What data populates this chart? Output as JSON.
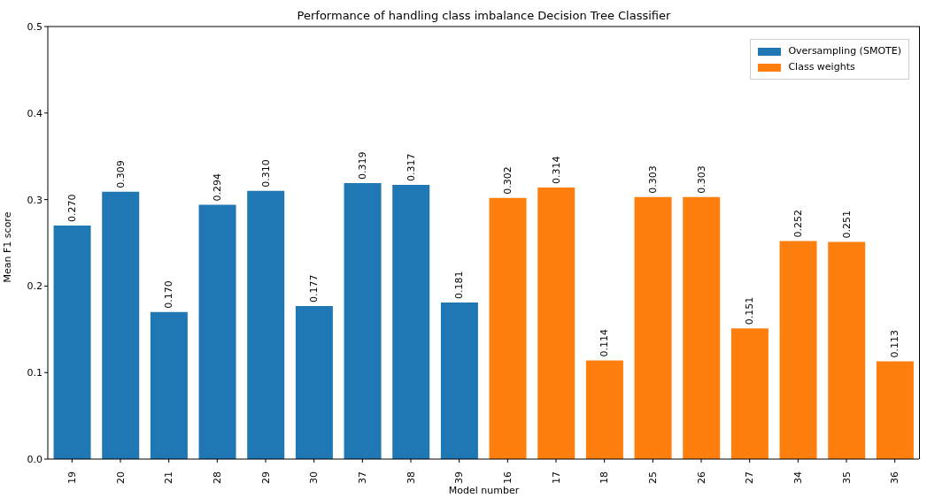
{
  "chart_data": {
    "type": "bar",
    "title": "Performance of handling class imbalance Decision Tree Classifier",
    "xlabel": "Model number",
    "ylabel": "Mean F1 score",
    "categories": [
      "19",
      "20",
      "21",
      "28",
      "29",
      "30",
      "37",
      "38",
      "39",
      "16",
      "17",
      "18",
      "25",
      "26",
      "27",
      "34",
      "35",
      "36"
    ],
    "series": [
      {
        "name": "Oversampling (SMOTE)",
        "color": "#1f77b4",
        "values": [
          0.27,
          0.309,
          0.17,
          0.294,
          0.31,
          0.177,
          0.319,
          0.317,
          0.181,
          null,
          null,
          null,
          null,
          null,
          null,
          null,
          null,
          null
        ],
        "value_labels": [
          "0.270",
          "0.309",
          "0.170",
          "0.294",
          "0.310",
          "0.177",
          "0.319",
          "0.317",
          "0.181",
          null,
          null,
          null,
          null,
          null,
          null,
          null,
          null,
          null
        ]
      },
      {
        "name": "Class weights",
        "color": "#ff7f0e",
        "values": [
          null,
          null,
          null,
          null,
          null,
          null,
          null,
          null,
          null,
          0.302,
          0.314,
          0.114,
          0.303,
          0.303,
          0.151,
          0.252,
          0.251,
          0.113
        ],
        "value_labels": [
          null,
          null,
          null,
          null,
          null,
          null,
          null,
          null,
          null,
          "0.302",
          "0.314",
          "0.114",
          "0.303",
          "0.303",
          "0.151",
          "0.252",
          "0.251",
          "0.113"
        ]
      }
    ],
    "ylim": [
      0,
      0.5
    ],
    "yticks": [
      {
        "value": 0,
        "label": "0.0"
      },
      {
        "value": 0.1,
        "label": "0.1"
      },
      {
        "value": 0.2,
        "label": "0.2"
      },
      {
        "value": 0.3,
        "label": "0.3"
      },
      {
        "value": 0.4,
        "label": "0.4"
      },
      {
        "value": 0.5,
        "label": "0.5"
      }
    ],
    "grid": false,
    "legend": "top right"
  }
}
